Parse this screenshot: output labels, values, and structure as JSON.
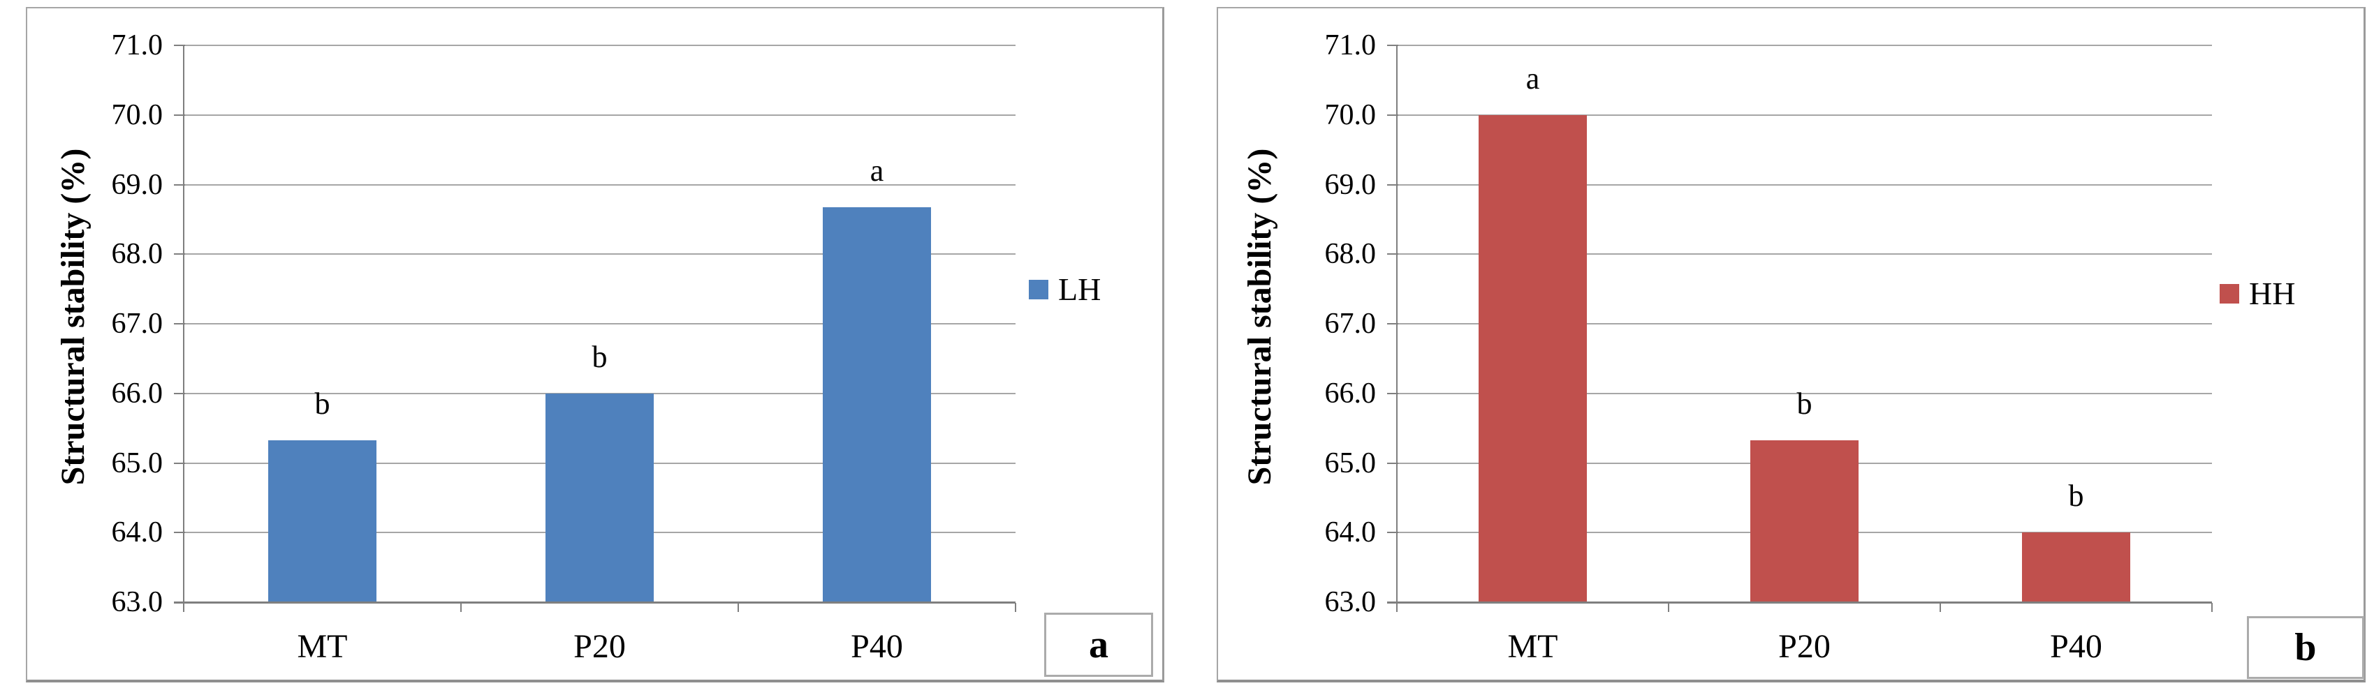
{
  "figure": {
    "background": "#ffffff",
    "ylabel": "Structural stability (%)"
  },
  "colors": {
    "gridline": "#a6a6a6",
    "axis": "#7f7f7f",
    "panel_border": "#a6a6a6",
    "text": "#000000"
  },
  "chart_data": [
    {
      "type": "bar",
      "panel_label": "a",
      "series_name": "LH",
      "bar_color": "#4F81BD",
      "ylabel": "Structural stability (%)",
      "categories": [
        "MT",
        "P20",
        "P40"
      ],
      "values": [
        65.33,
        66.0,
        68.67
      ],
      "bar_annotations": [
        "b",
        "b",
        "a"
      ],
      "ylim": [
        63.0,
        71.0
      ],
      "ytick_step": 1.0,
      "ytick_labels": [
        "63.0",
        "64.0",
        "65.0",
        "66.0",
        "67.0",
        "68.0",
        "69.0",
        "70.0",
        "71.0"
      ],
      "grid": true,
      "legend_position": "right-middle"
    },
    {
      "type": "bar",
      "panel_label": "b",
      "series_name": "HH",
      "bar_color": "#C0504D",
      "ylabel": "Structural stability (%)",
      "categories": [
        "MT",
        "P20",
        "P40"
      ],
      "values": [
        70.0,
        65.33,
        64.0
      ],
      "bar_annotations": [
        "a",
        "b",
        "b"
      ],
      "ylim": [
        63.0,
        71.0
      ],
      "ytick_step": 1.0,
      "ytick_labels": [
        "63.0",
        "64.0",
        "65.0",
        "66.0",
        "67.0",
        "68.0",
        "69.0",
        "70.0",
        "71.0"
      ],
      "grid": true,
      "legend_position": "right-middle"
    }
  ]
}
